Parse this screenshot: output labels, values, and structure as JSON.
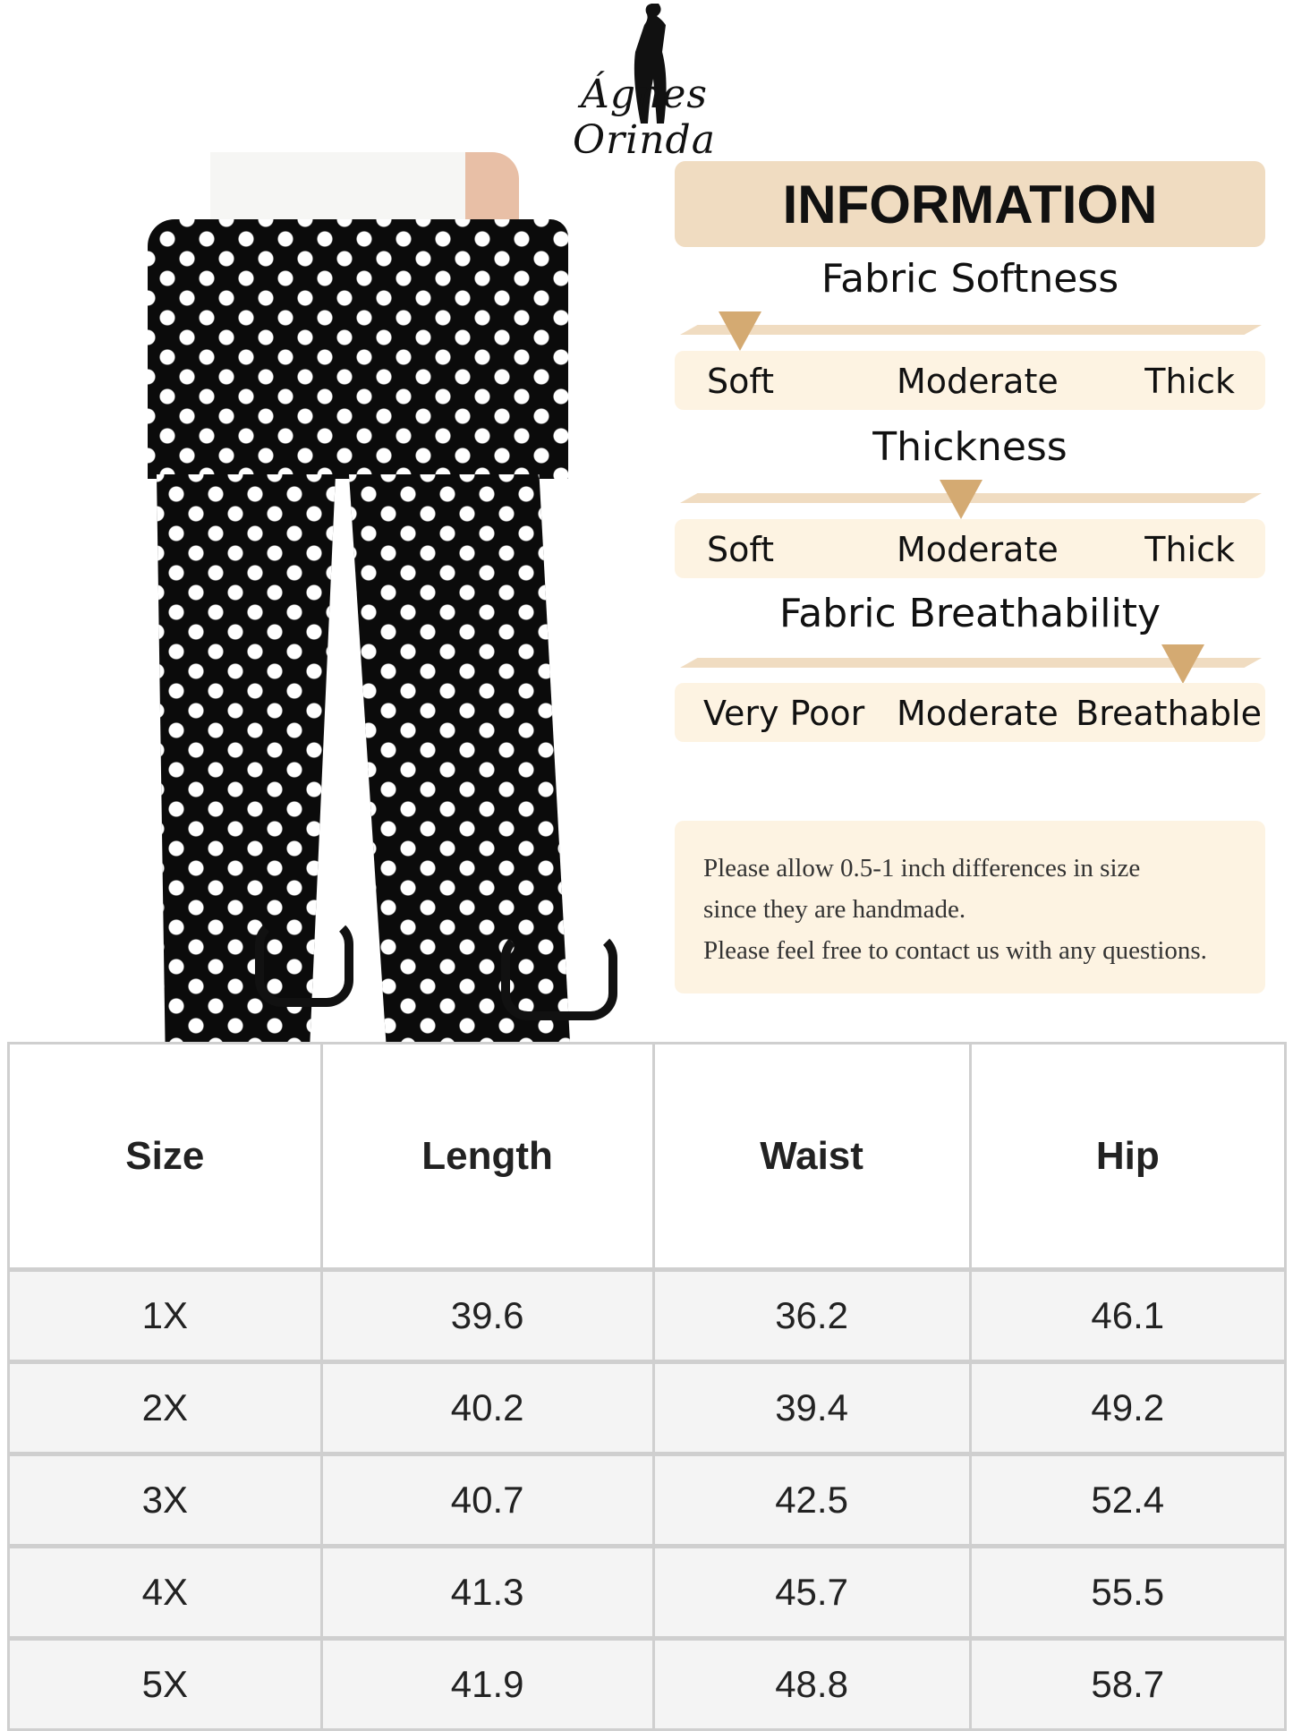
{
  "logo": {
    "brand_left": "Ágnes",
    "brand_right": "Orinda"
  },
  "info": {
    "title": "INFORMATION",
    "metrics": [
      {
        "title": "Fabric Softness",
        "labels": [
          "Soft",
          "Moderate",
          "Thick"
        ],
        "level": 0
      },
      {
        "title": "Thickness",
        "labels": [
          "Soft",
          "Moderate",
          "Thick"
        ],
        "level": 0.5
      },
      {
        "title": "Fabric Breathability",
        "labels": [
          "Very Poor",
          "Moderate",
          "Breathable"
        ],
        "level": 0.9
      }
    ],
    "marker_color": "#d4aa72",
    "note": [
      "Please allow 0.5-1 inch differences in size",
      "since they are handmade.",
      "Please feel free to contact us with any questions."
    ]
  },
  "size_table": {
    "headers": [
      "Size",
      "Length",
      "Waist",
      "Hip"
    ],
    "rows": [
      [
        "1X",
        "39.6",
        "36.2",
        "46.1"
      ],
      [
        "2X",
        "40.2",
        "39.4",
        "49.2"
      ],
      [
        "3X",
        "40.7",
        "42.5",
        "52.4"
      ],
      [
        "4X",
        "41.3",
        "45.7",
        "55.5"
      ],
      [
        "5X",
        "41.9",
        "48.8",
        "58.7"
      ]
    ]
  }
}
